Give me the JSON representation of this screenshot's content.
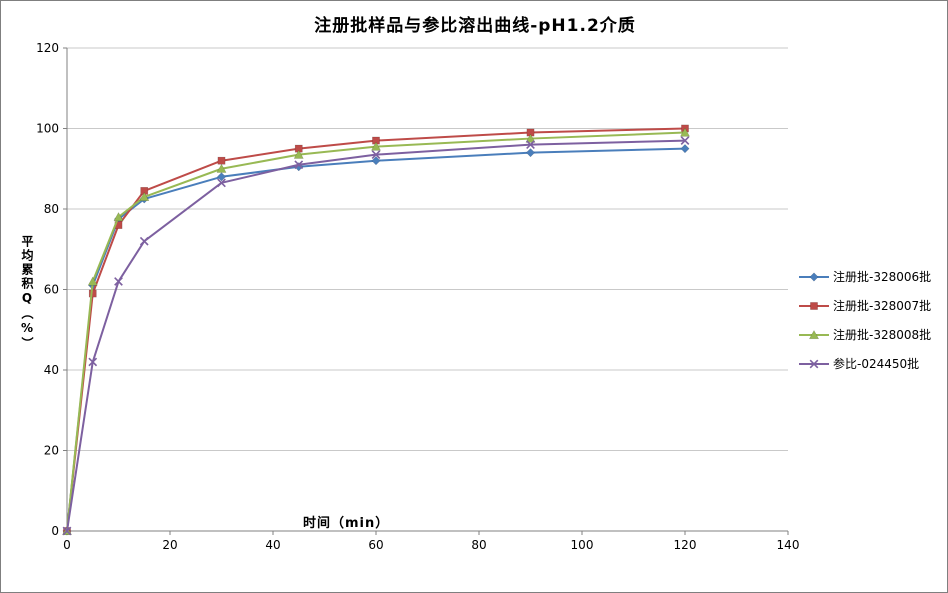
{
  "chart_data": {
    "type": "line",
    "title": "注册批样品与参比溶出曲线-pH1.2介质",
    "xlabel": "时间（min）",
    "ylabel": "平均累积Q（%）",
    "xlim": [
      0,
      140
    ],
    "ylim": [
      0,
      120
    ],
    "x_ticks": [
      0,
      20,
      40,
      60,
      80,
      100,
      120,
      140
    ],
    "y_ticks": [
      0,
      20,
      40,
      60,
      80,
      100,
      120
    ],
    "grid": true,
    "legend_position": "right",
    "x": [
      0,
      5,
      10,
      15,
      30,
      45,
      60,
      90,
      120
    ],
    "series": [
      {
        "name": "注册批-328006批",
        "color": "#4A7EBB",
        "marker": "diamond",
        "values": [
          0,
          61,
          77.5,
          82.5,
          88,
          90.5,
          92,
          94,
          95
        ]
      },
      {
        "name": "注册批-328007批",
        "color": "#BE4B48",
        "marker": "square",
        "values": [
          0,
          59,
          76,
          84.5,
          92,
          95,
          97,
          99,
          100
        ]
      },
      {
        "name": "注册批-328008批",
        "color": "#98B954",
        "marker": "triangle",
        "values": [
          0,
          62,
          78,
          83,
          90,
          93.5,
          95.5,
          97.5,
          99
        ]
      },
      {
        "name": "参比-024450批",
        "color": "#7D60A0",
        "marker": "x",
        "values": [
          0,
          42,
          62,
          72,
          86.5,
          91,
          93.5,
          96,
          97
        ]
      }
    ]
  }
}
